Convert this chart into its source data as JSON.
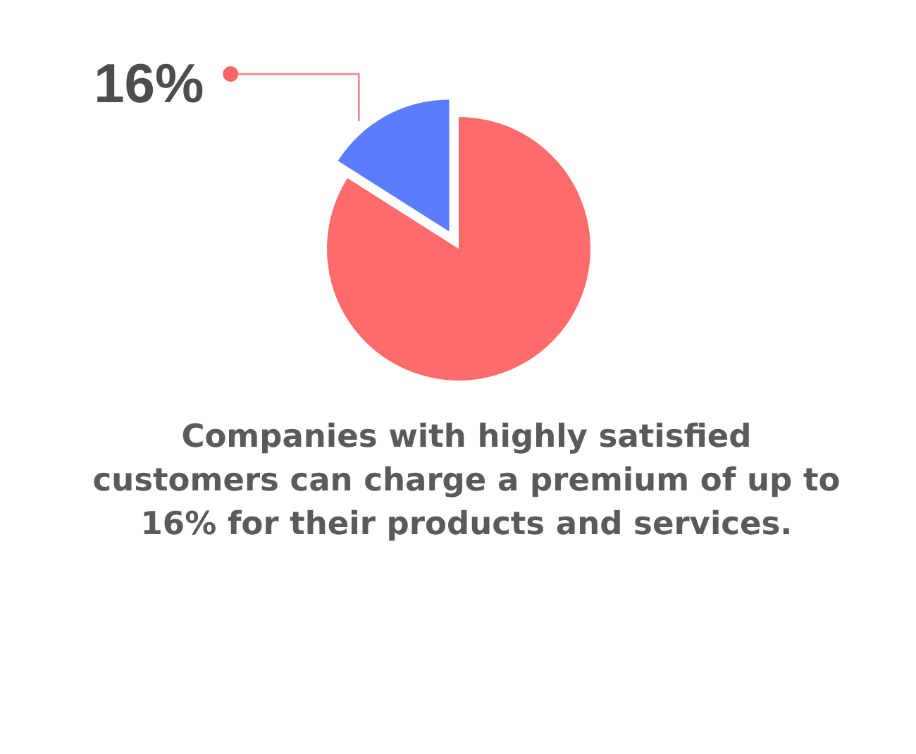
{
  "chart_data": {
    "type": "pie",
    "categories": [
      null,
      null
    ],
    "values": [
      84,
      16
    ],
    "colors": [
      "#ff6b6b",
      "#5b7cfb"
    ],
    "value_labels": [
      null,
      "16%"
    ],
    "annotations": [
      "Companies with highly satisfied customers can charge a premium of up to 16% for their products and services."
    ]
  }
}
